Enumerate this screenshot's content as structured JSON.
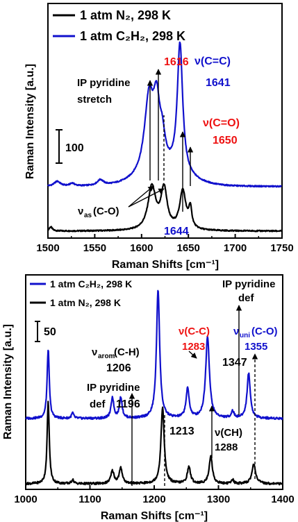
{
  "chart_data": [
    {
      "type": "line",
      "xlabel": "Raman Shifts [cm⁻¹]",
      "ylabel": "Raman Intensity [a.u.]",
      "xlim": [
        1500,
        1750
      ],
      "xticks": [
        "1500",
        "1550",
        "1600",
        "1650",
        "1700",
        "1750"
      ],
      "scale_bar": "100",
      "legend_position": "top-left",
      "series": [
        {
          "name": "1 atm N₂, 298 K",
          "color": "#000000",
          "baseline": 0,
          "bg": 0,
          "peaks": [
            [
              1503,
              6,
              2
            ],
            [
              1611,
              62,
              5
            ],
            [
              1624,
              58,
              4
            ],
            [
              1644,
              56,
              4
            ],
            [
              1652,
              28,
              2
            ]
          ]
        },
        {
          "name": "1 atm C₂H₂, 298 K",
          "color": "#1010cc",
          "baseline": 0,
          "bg": 16,
          "peaks": [
            [
              1510,
              7,
              4
            ],
            [
              1526,
              4,
              3
            ],
            [
              1556,
              8,
              4
            ],
            [
              1608,
              110,
              6
            ],
            [
              1616,
              82,
              4
            ],
            [
              1622,
              40,
              4
            ],
            [
              1641,
              188,
              3.5
            ]
          ]
        }
      ],
      "annotations": [
        {
          "text": "1616",
          "color": "#ee1111"
        },
        {
          "text": "ν(C=C)",
          "color": "#1010cc"
        },
        {
          "text": "1641",
          "color": "#1010cc"
        },
        {
          "text": "IP pyridine",
          "color": "#000000"
        },
        {
          "text": "stretch",
          "color": "#000000"
        },
        {
          "text": "ν(C=O)",
          "color": "#ee1111"
        },
        {
          "text": "1650",
          "color": "#ee1111"
        },
        {
          "text": "ν",
          "color": "#000000"
        },
        {
          "text": "as",
          "color": "#000000"
        },
        {
          "text": "(C-O)",
          "color": "#000000"
        },
        {
          "text": "1644",
          "color": "#1010cc"
        }
      ]
    },
    {
      "type": "line",
      "xlabel": "Raman Shifts [cm⁻¹]",
      "ylabel": "Raman Intensity [a.u.]",
      "xlim": [
        1000,
        1400
      ],
      "xticks": [
        "1000",
        "1100",
        "1200",
        "1300",
        "1400"
      ],
      "scale_bar": "50",
      "legend_position": "top-left",
      "series": [
        {
          "name": "1 atm C₂H₂, 298 K",
          "color": "#1010cc",
          "baseline": 0,
          "bg": 0,
          "peaks": [
            [
              1035,
              100,
              2
            ],
            [
              1073,
              8,
              2
            ],
            [
              1135,
              30,
              2.5
            ],
            [
              1148,
              30,
              2.5
            ],
            [
              1206,
              185,
              3
            ],
            [
              1252,
              42,
              3
            ],
            [
              1283,
              118,
              3.5
            ],
            [
              1322,
              10,
              2.5
            ],
            [
              1347,
              65,
              3
            ]
          ]
        },
        {
          "name": "1 atm N₂, 298 K",
          "color": "#000000",
          "baseline": 0,
          "bg": 0,
          "peaks": [
            [
              1035,
              118,
              2
            ],
            [
              1073,
              6,
              2
            ],
            [
              1135,
              18,
              3
            ],
            [
              1148,
              22,
              3
            ],
            [
              1213,
              110,
              3
            ],
            [
              1254,
              24,
              3
            ],
            [
              1288,
              40,
              3
            ],
            [
              1322,
              6,
              2
            ],
            [
              1355,
              28,
              3.5
            ]
          ]
        }
      ],
      "annotations": [
        {
          "text": "ν",
          "color": "#000000"
        },
        {
          "text": "arom",
          "color": "#000000"
        },
        {
          "text": "(C-H)",
          "color": "#000000"
        },
        {
          "text": "1206",
          "color": "#000000"
        },
        {
          "text": "IP pyridine",
          "color": "#000000"
        },
        {
          "text": "def",
          "color": "#000000"
        },
        {
          "text": "1196",
          "color": "#000000"
        },
        {
          "text": "ν(C-C)",
          "color": "#ee1111"
        },
        {
          "text": "1283",
          "color": "#ee1111"
        },
        {
          "text": "IP pyridine",
          "color": "#000000"
        },
        {
          "text": "def",
          "color": "#000000"
        },
        {
          "text": "ν",
          "color": "#1010cc"
        },
        {
          "text": "uni",
          "color": "#1010cc"
        },
        {
          "text": "(C-O)",
          "color": "#1010cc"
        },
        {
          "text": "1355",
          "color": "#1010cc"
        },
        {
          "text": "1347",
          "color": "#000000"
        },
        {
          "text": "1213",
          "color": "#000000"
        },
        {
          "text": "ν(CH)",
          "color": "#000000"
        },
        {
          "text": "1288",
          "color": "#000000"
        }
      ]
    }
  ]
}
